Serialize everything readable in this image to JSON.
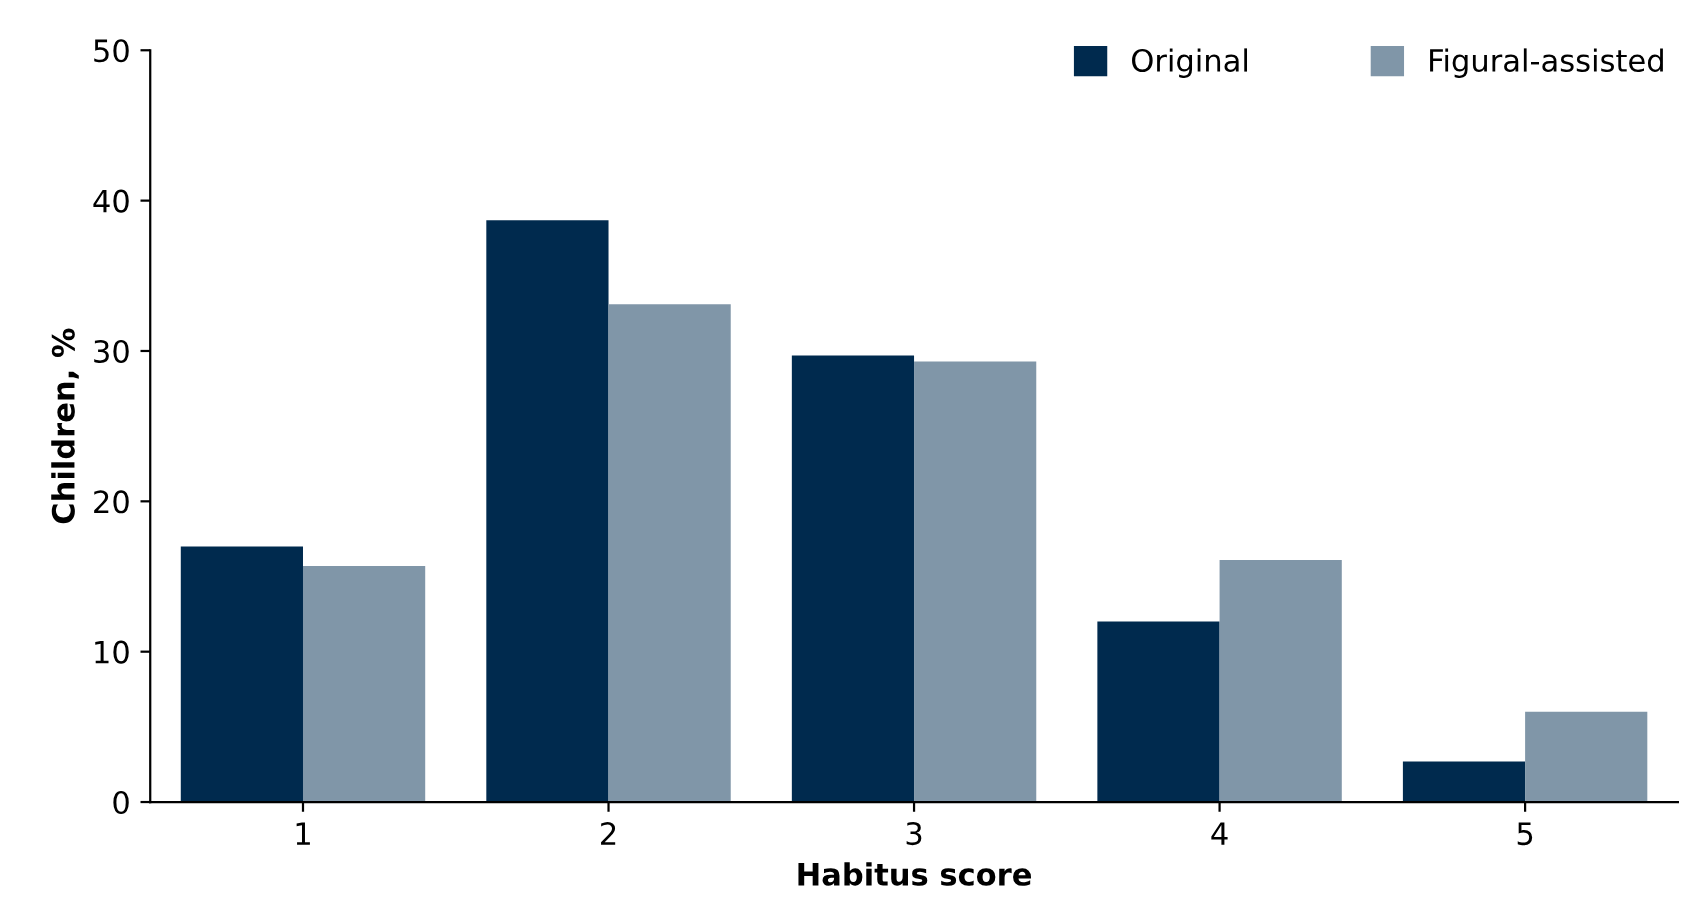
{
  "chart_data": {
    "type": "bar",
    "xlabel": "Habitus score",
    "ylabel": "Children, %",
    "categories": [
      "1",
      "2",
      "3",
      "4",
      "5"
    ],
    "series": [
      {
        "name": "Original",
        "color": "#002a4e",
        "values": [
          17.0,
          38.7,
          29.7,
          12.0,
          2.7
        ]
      },
      {
        "name": "Figural-assisted",
        "color": "#8096a8",
        "values": [
          15.7,
          33.1,
          29.3,
          16.1,
          6.0
        ]
      }
    ],
    "ylim": [
      0,
      50
    ],
    "yticks": [
      0,
      10,
      20,
      30,
      40,
      50
    ],
    "grid": false,
    "legend": "top right"
  }
}
